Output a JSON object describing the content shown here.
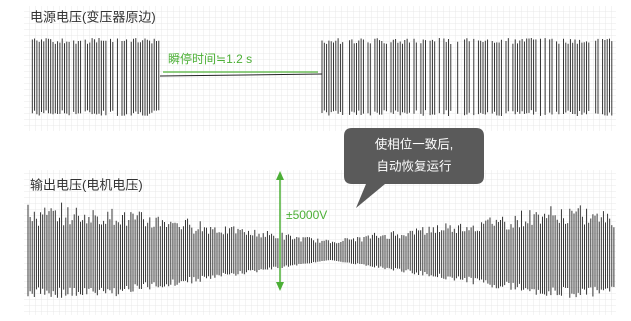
{
  "panels": [
    {
      "title": "电源电压(变压器原边)",
      "annotation": "瞬停时间≒1.2 s"
    },
    {
      "title": "输出电压(电机电压)",
      "annotation": "±5000V"
    }
  ],
  "callout": {
    "lines": [
      "使相位一致后,",
      "自动恢复运行"
    ]
  }
}
